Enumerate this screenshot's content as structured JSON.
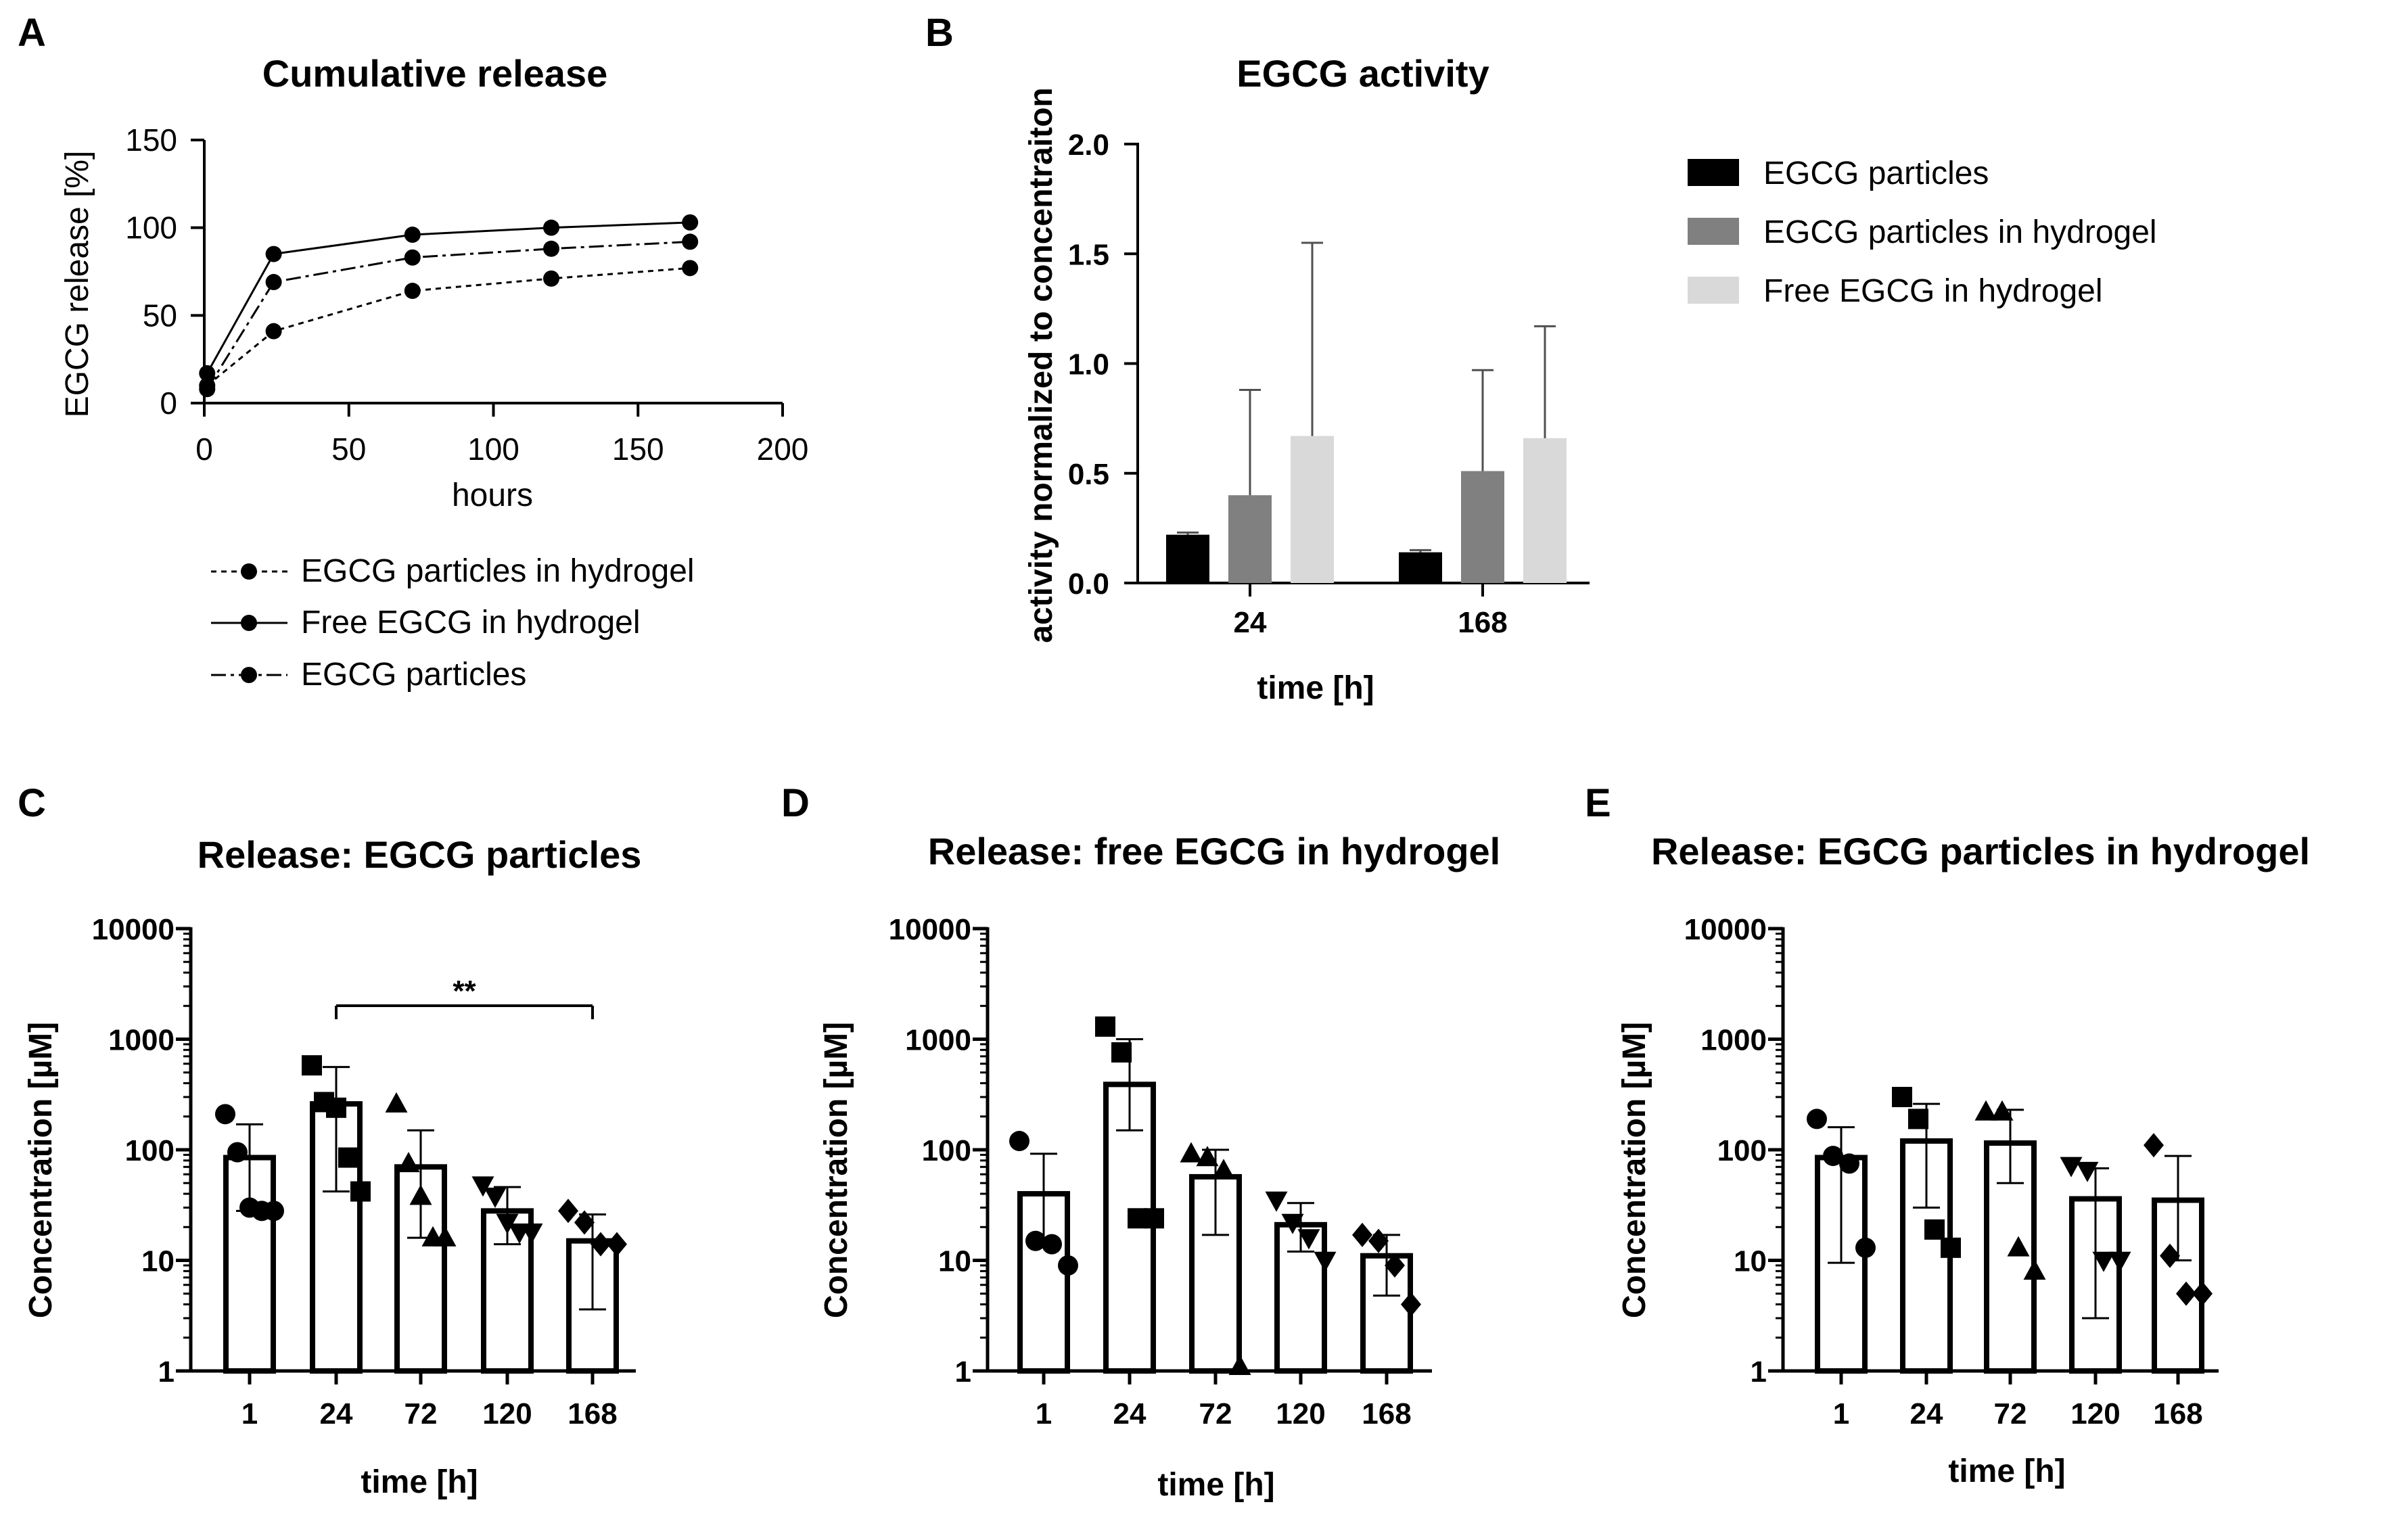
{
  "chart_data": [
    {
      "panel": "A",
      "type": "line",
      "title": "Cumulative release",
      "xlabel": "hours",
      "ylabel": "EGCG release [%]",
      "xlim": [
        0,
        200
      ],
      "ylim": [
        0,
        150
      ],
      "xticks": [
        "0",
        "50",
        "100",
        "150",
        "200"
      ],
      "yticks": [
        "0",
        "50",
        "100",
        "150"
      ],
      "x": [
        1,
        24,
        72,
        120,
        168
      ],
      "series": [
        {
          "name": "EGCG particles in hydrogel",
          "style": "dotted",
          "values": [
            10,
            41,
            64,
            71,
            77
          ]
        },
        {
          "name": "Free EGCG in hydrogel",
          "style": "solid",
          "values": [
            17,
            85,
            96,
            100,
            103
          ]
        },
        {
          "name": "EGCG particles",
          "style": "dashdot",
          "values": [
            8,
            69,
            83,
            88,
            92
          ]
        }
      ]
    },
    {
      "panel": "B",
      "type": "bar",
      "title": "EGCG activity",
      "xlabel": "time [h]",
      "ylabel": "activity normalized to concentraiton",
      "ylim": [
        0,
        2.0
      ],
      "yticks": [
        "0.0",
        "0.5",
        "1.0",
        "1.5",
        "2.0"
      ],
      "categories": [
        "24",
        "168"
      ],
      "series": [
        {
          "name": "EGCG particles",
          "color": "#000000",
          "values": [
            0.22,
            0.14
          ],
          "err": [
            0.01,
            0.01
          ]
        },
        {
          "name": "EGCG particles in hydrogel",
          "color": "#808080",
          "values": [
            0.4,
            0.51
          ],
          "err": [
            0.48,
            0.46
          ]
        },
        {
          "name": "Free EGCG in hydrogel",
          "color": "#d9d9d9",
          "values": [
            0.67,
            0.66
          ],
          "err": [
            0.88,
            0.51
          ]
        }
      ]
    },
    {
      "panel": "C",
      "type": "bar",
      "scale": "log",
      "title": "Release: EGCG particles",
      "xlabel": "time [h]",
      "ylabel": "Concentration [µM]",
      "ylim": [
        1,
        10000
      ],
      "yticks": [
        "1",
        "10",
        "100",
        "1000",
        "10000"
      ],
      "categories": [
        "1",
        "24",
        "72",
        "120",
        "168"
      ],
      "values": [
        85,
        260,
        70,
        28,
        15
      ],
      "err_low": [
        28,
        42,
        16,
        14,
        3.6
      ],
      "err_high": [
        170,
        560,
        150,
        46,
        26
      ],
      "points": [
        [
          210,
          95,
          30,
          28,
          28
        ],
        [
          580,
          270,
          240,
          85,
          42
        ],
        [
          260,
          75,
          38,
          16,
          16
        ],
        [
          48,
          38,
          22,
          18,
          18
        ],
        [
          28,
          22,
          14,
          14
        ]
      ],
      "markers": [
        "circle",
        "square",
        "triangle",
        "triangle-down",
        "diamond"
      ],
      "annotation": {
        "text": "**",
        "from": "24",
        "to": "168"
      }
    },
    {
      "panel": "D",
      "type": "bar",
      "scale": "log",
      "title": "Release: free EGCG in hydrogel",
      "xlabel": "time [h]",
      "ylabel": "Concentration [µM]",
      "ylim": [
        1,
        10000
      ],
      "yticks": [
        "1",
        "10",
        "100",
        "1000",
        "10000"
      ],
      "categories": [
        "1",
        "24",
        "72",
        "120",
        "168"
      ],
      "values": [
        40,
        390,
        57,
        21,
        11
      ],
      "err_low": [
        15,
        150,
        17,
        12,
        4.8
      ],
      "err_high": [
        92,
        1000,
        100,
        33,
        17
      ],
      "points": [
        [
          120,
          15,
          14,
          9
        ],
        [
          1300,
          760,
          24,
          24
        ],
        [
          92,
          85,
          65,
          1.1
        ],
        [
          35,
          22,
          16,
          10
        ],
        [
          17,
          15,
          9,
          4
        ]
      ],
      "markers": [
        "circle",
        "square",
        "triangle",
        "triangle-down",
        "diamond"
      ]
    },
    {
      "panel": "E",
      "type": "bar",
      "scale": "log",
      "title": "Release: EGCG particles in hydrogel",
      "xlabel": "time [h]",
      "ylabel": "Concentration [µM]",
      "ylim": [
        1,
        10000
      ],
      "yticks": [
        "1",
        "10",
        "100",
        "1000",
        "10000"
      ],
      "categories": [
        "1",
        "24",
        "72",
        "120",
        "168"
      ],
      "values": [
        85,
        120,
        115,
        36,
        35
      ],
      "err_low": [
        9.5,
        30,
        50,
        3,
        10
      ],
      "err_high": [
        160,
        260,
        230,
        68,
        88
      ],
      "points": [
        [
          190,
          88,
          75,
          13
        ],
        [
          300,
          190,
          19,
          13
        ],
        [
          220,
          220,
          13,
          8
        ],
        [
          72,
          65,
          10,
          10
        ],
        [
          110,
          11,
          5,
          5
        ]
      ],
      "markers": [
        "circle",
        "square",
        "triangle",
        "triangle-down",
        "diamond"
      ]
    }
  ],
  "panel_labels": [
    "A",
    "B",
    "C",
    "D",
    "E"
  ]
}
